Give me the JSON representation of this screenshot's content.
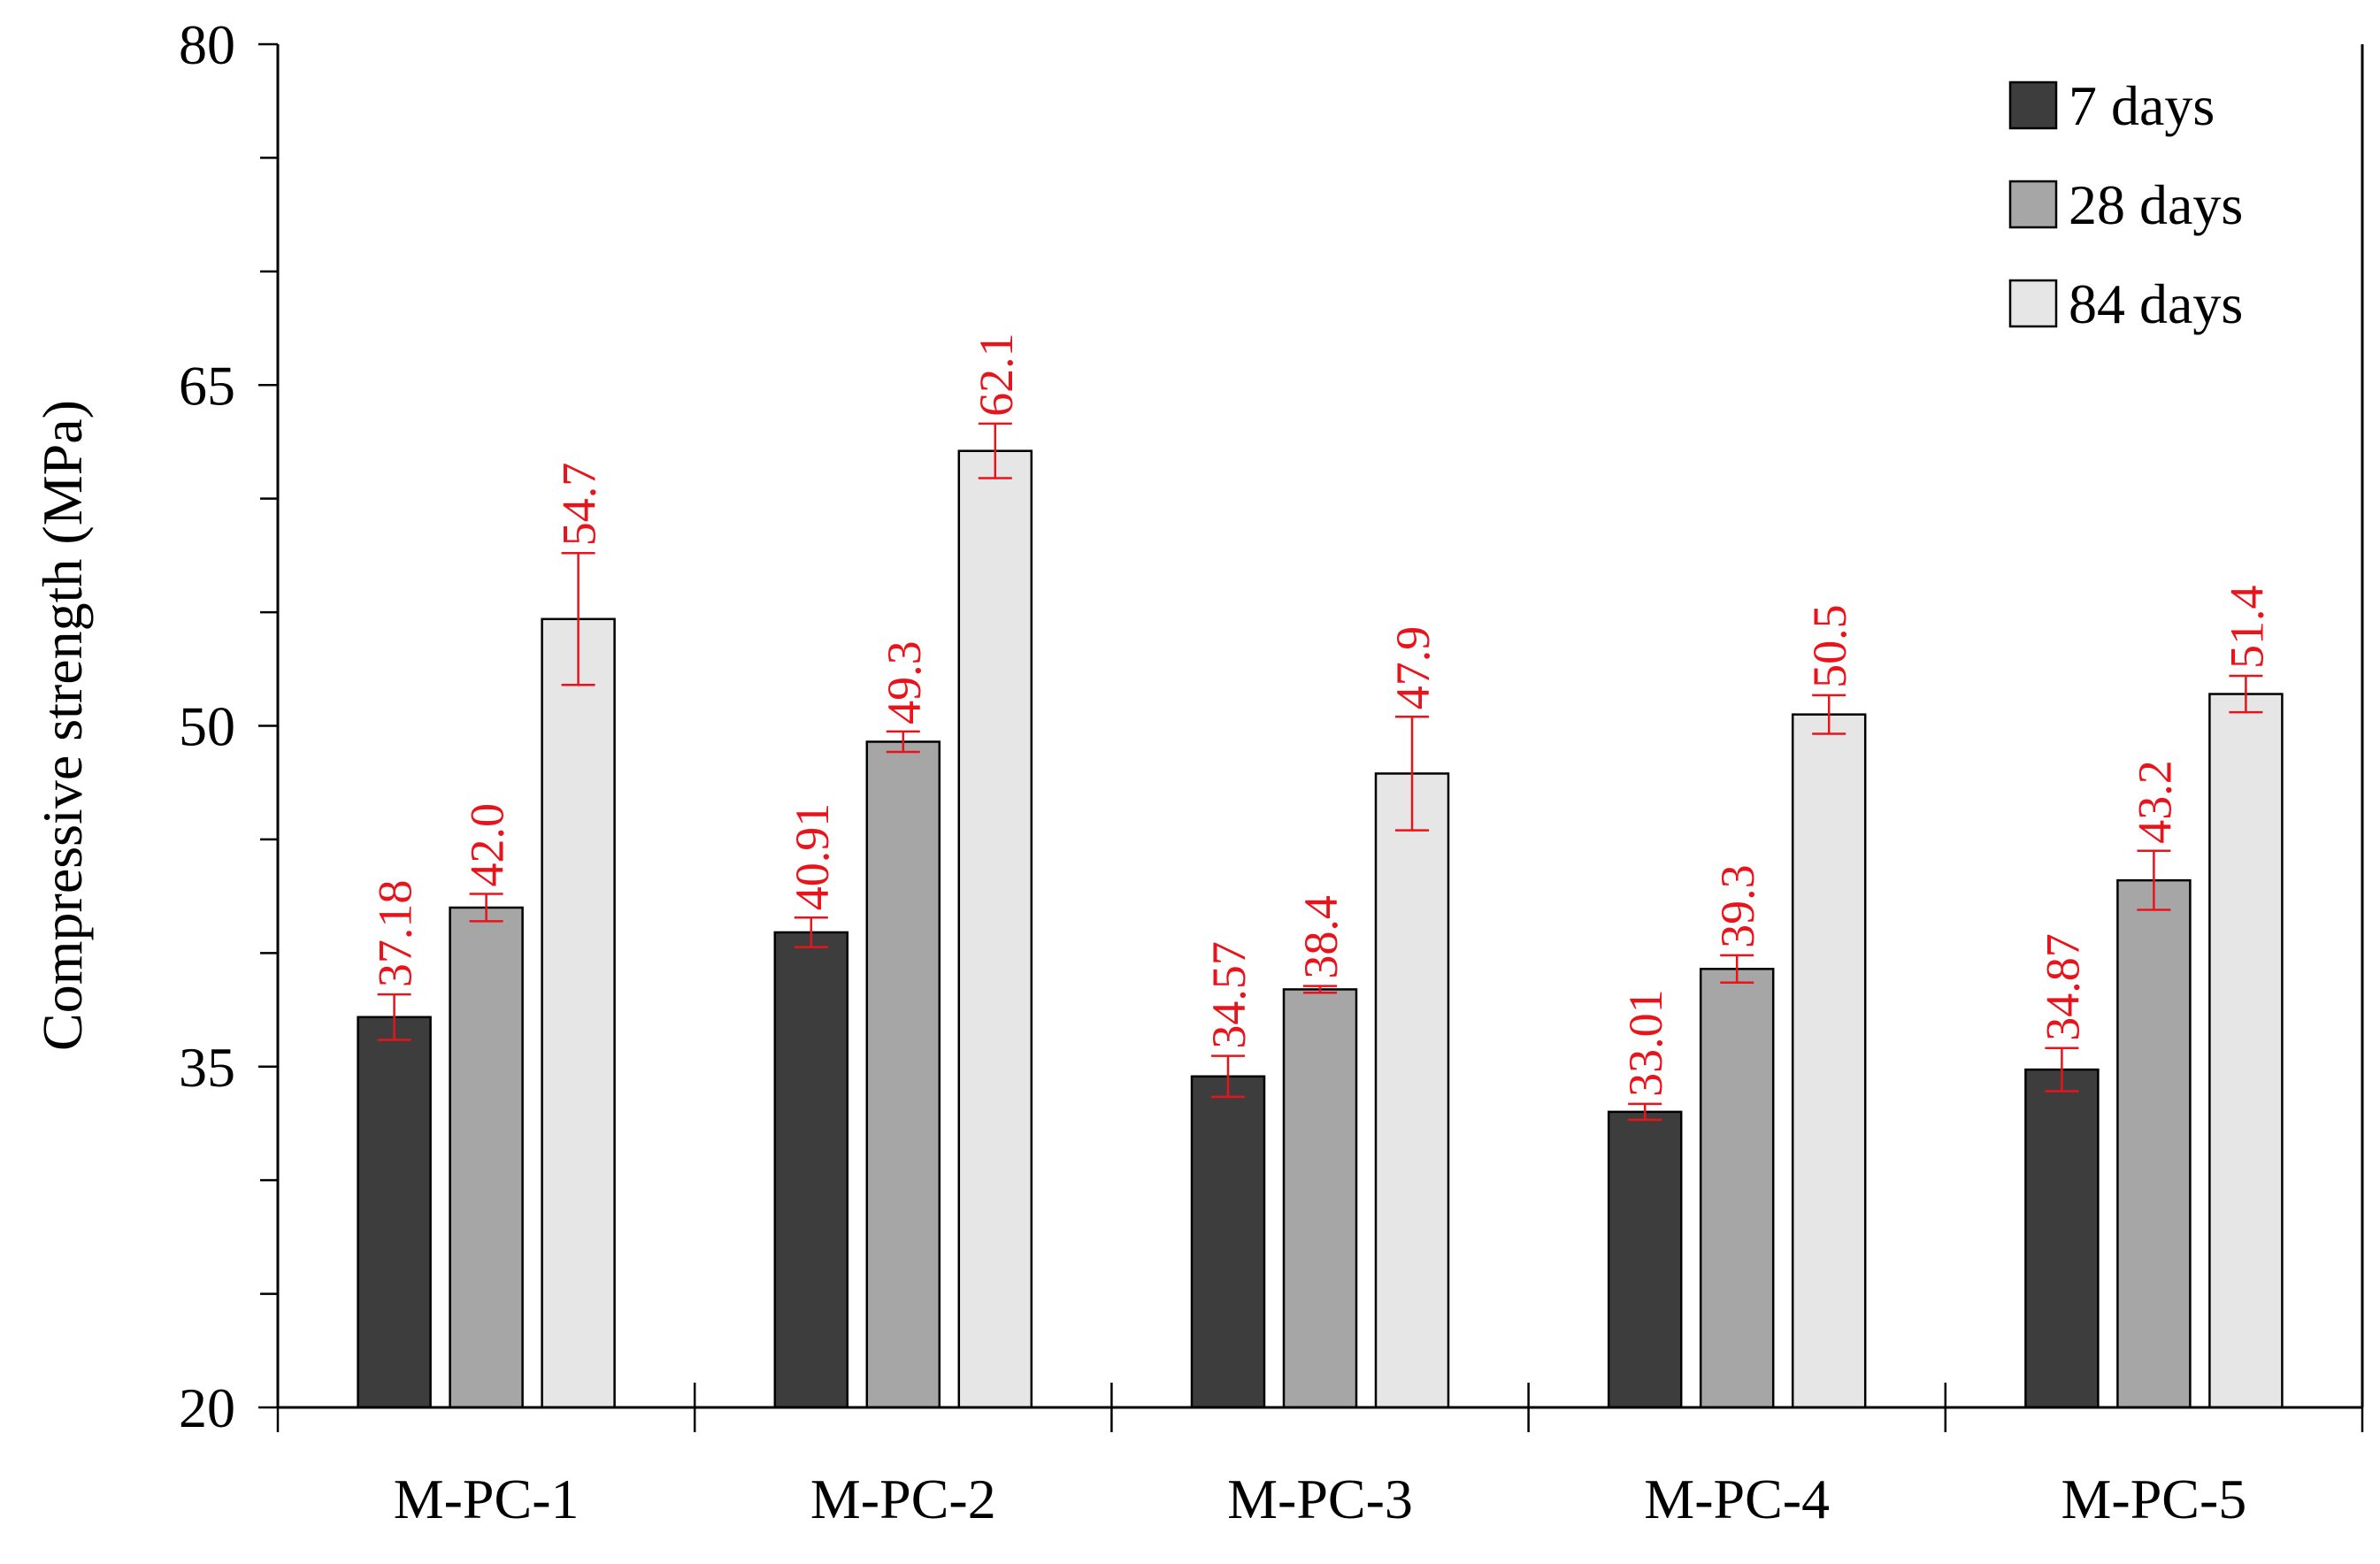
{
  "chart_data": {
    "type": "bar",
    "title": "",
    "xlabel": "",
    "ylabel": "Compressive strength (MPa)",
    "ylim": [
      20,
      80
    ],
    "yticks": [
      20,
      35,
      50,
      65,
      80
    ],
    "categories": [
      "M-PC-1",
      "M-PC-2",
      "M-PC-3",
      "M-PC-4",
      "M-PC-5"
    ],
    "series": [
      {
        "name": "7 days",
        "color": "#3d3d3d",
        "values": [
          37.18,
          40.91,
          34.57,
          33.01,
          34.87
        ],
        "labels": [
          "37.18",
          "40.91",
          "34.57",
          "33.01",
          "34.87"
        ],
        "errors": [
          1.0,
          0.65,
          0.9,
          0.35,
          0.95
        ]
      },
      {
        "name": "28 days",
        "color": "#a6a6a6",
        "values": [
          42.0,
          49.3,
          38.4,
          39.3,
          43.2
        ],
        "labels": [
          "42.0",
          "49.3",
          "38.4",
          "39.3",
          "43.2"
        ],
        "errors": [
          0.6,
          0.45,
          0.15,
          0.6,
          1.3
        ]
      },
      {
        "name": "84 days",
        "color": "#e6e6e6",
        "values": [
          54.7,
          62.1,
          47.9,
          50.5,
          51.4
        ],
        "labels": [
          "54.7",
          "62.1",
          "47.9",
          "50.5",
          "51.4"
        ],
        "errors": [
          2.9,
          1.2,
          2.5,
          0.85,
          0.8
        ]
      }
    ],
    "error_bar_color": "#e8141b",
    "data_label_color": "#e8141b",
    "legend_position": "top-right",
    "grid": false
  }
}
